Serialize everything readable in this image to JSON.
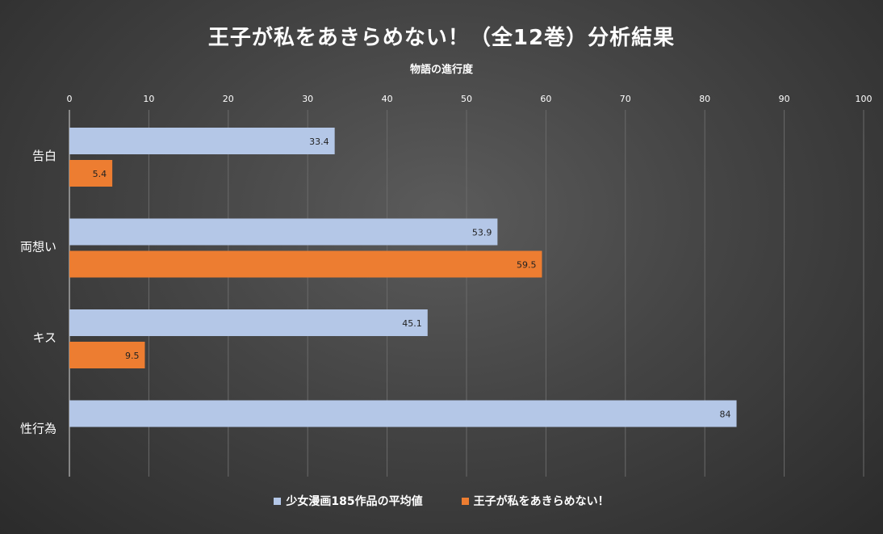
{
  "chart_data": {
    "type": "bar",
    "orientation": "horizontal",
    "title": "王子が私をあきらめない！（全12巻）分析結果",
    "xlabel": "物語の進行度",
    "ylabel": "",
    "xlim": [
      0,
      100
    ],
    "ticks": [
      "0",
      "10",
      "20",
      "30",
      "40",
      "50",
      "60",
      "70",
      "80",
      "90",
      "100"
    ],
    "categories": [
      "告白",
      "両想い",
      "キス",
      "性行為"
    ],
    "series": [
      {
        "name": "少女漫画185作品の平均値",
        "color": "#b4c7e7",
        "values": [
          33.4,
          53.9,
          45.1,
          84
        ],
        "labels": [
          "33.4",
          "53.9",
          "45.1",
          "84"
        ]
      },
      {
        "name": "王子が私をあきらめない！",
        "color": "#ed7d31",
        "values": [
          5.4,
          59.5,
          9.5,
          null
        ],
        "labels": [
          "5.4",
          "59.5",
          "9.5",
          ""
        ]
      }
    ],
    "grid": true,
    "legend_position": "bottom"
  }
}
